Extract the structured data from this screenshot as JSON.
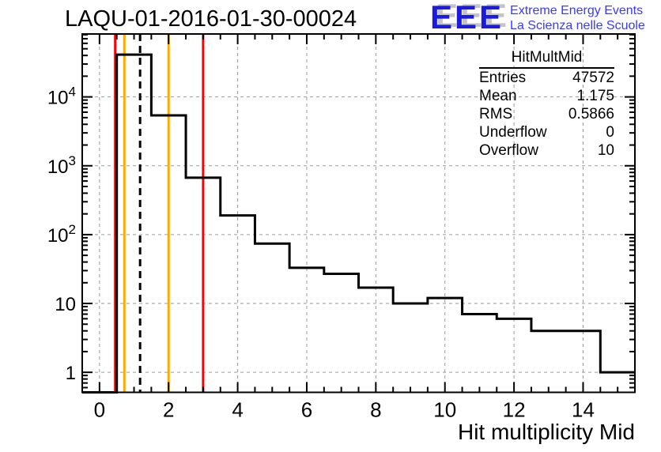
{
  "header": {
    "title": "LAQU-01-2016-01-30-00024"
  },
  "logo": {
    "text": "EEE",
    "line1": "Extreme Energy Events",
    "line2": "La Scienza nelle Scuole",
    "color_primary": "#1a1ae0",
    "color_text": "#3a3aff",
    "color_shadow": "#c4c4c4"
  },
  "stats_box": {
    "title": "HitMultMid",
    "rows": [
      {
        "label": "Entries",
        "value": "47572"
      },
      {
        "label": "Mean",
        "value": "1.175"
      },
      {
        "label": "RMS",
        "value": "0.5866"
      },
      {
        "label": "Underflow",
        "value": "0"
      },
      {
        "label": "Overflow",
        "value": "10"
      }
    ]
  },
  "chart_data": {
    "type": "bar",
    "title": "LAQU-01-2016-01-30-00024",
    "xlabel": "Hit multiplicity Mid",
    "ylabel": "",
    "y_scale": "log",
    "grid": true,
    "x_range": [
      -0.5,
      15.5
    ],
    "y_log_range": [
      0.512,
      82000
    ],
    "bin_width": 1,
    "bin_centers": [
      0,
      1,
      2,
      3,
      4,
      5,
      6,
      7,
      8,
      9,
      10,
      11,
      12,
      13,
      14,
      15
    ],
    "values": [
      0,
      41100,
      5400,
      670,
      190,
      74,
      33,
      27,
      17,
      10,
      12,
      7,
      6,
      4,
      4,
      1
    ],
    "x_ticks": [
      {
        "x": 0,
        "label": "0"
      },
      {
        "x": 2,
        "label": "2"
      },
      {
        "x": 4,
        "label": "4"
      },
      {
        "x": 6,
        "label": "6"
      },
      {
        "x": 8,
        "label": "8"
      },
      {
        "x": 10,
        "label": "10"
      },
      {
        "x": 12,
        "label": "12"
      },
      {
        "x": 14,
        "label": "14"
      }
    ],
    "x_minor_step": 0.5,
    "y_ticks": [
      {
        "v": 1,
        "base": "1",
        "exp": ""
      },
      {
        "v": 10,
        "base": "10",
        "exp": ""
      },
      {
        "v": 100,
        "base": "10",
        "exp": "2"
      },
      {
        "v": 1000,
        "base": "10",
        "exp": "3"
      },
      {
        "v": 10000,
        "base": "10",
        "exp": "4"
      }
    ],
    "marker_lines": [
      {
        "name": "red-marker-low",
        "x": 0.5,
        "color": "#ff0000",
        "style": "solid"
      },
      {
        "name": "orange-marker-low",
        "x": 0.72,
        "color": "#ffaa00",
        "style": "solid"
      },
      {
        "name": "mean-dashed-marker",
        "x": 1.175,
        "color": "#000000",
        "style": "dashed"
      },
      {
        "name": "orange-marker-high",
        "x": 2,
        "color": "#ffaa00",
        "style": "solid"
      },
      {
        "name": "red-marker-high",
        "x": 3,
        "color": "#ff0000",
        "style": "solid"
      }
    ],
    "colors": {
      "histogram": "#000000",
      "frame": "#000000",
      "grid": "#9a9a9a"
    }
  }
}
